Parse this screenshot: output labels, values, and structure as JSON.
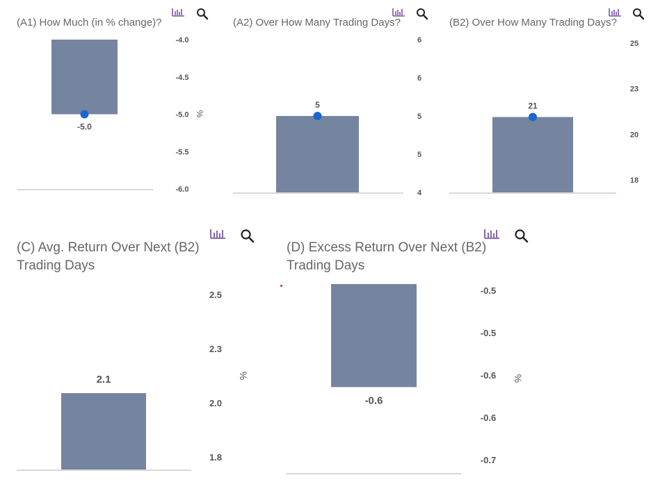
{
  "icons": {
    "chart": "bar-chart-icon",
    "zoom": "search-icon"
  },
  "colors": {
    "bar": "#7585a0",
    "marker": "#1a66cc",
    "baseline": "#d8d8d8",
    "text": "#555555"
  },
  "panels": [
    {
      "title": "(A1) How Much (in % change)?"
    },
    {
      "title": "(A2) Over How Many Trading Days?"
    },
    {
      "title": "(B2) Over How Many Trading Days?"
    },
    {
      "title": "(C) Avg. Return Over Next (B2) Trading Days"
    },
    {
      "title": "(D) Excess Return Over Next (B2) Trading Days"
    }
  ],
  "chart_data": [
    {
      "type": "bar",
      "title": "(A1) How Much (in % change)?",
      "value": -5.0,
      "value_label": "-5.0",
      "marker": true,
      "ylim": [
        -6.0,
        -4.0
      ],
      "yticks": [
        "-4.0",
        "-4.5",
        "-5.0",
        "-5.5",
        "-6.0"
      ],
      "ylabel": "%",
      "bar_from": "top"
    },
    {
      "type": "bar",
      "title": "(A2) Over How Many Trading Days?",
      "value": 5,
      "value_label": "5",
      "marker": true,
      "ylim": [
        4,
        6
      ],
      "yticks": [
        "6",
        "6",
        "5",
        "5",
        "4"
      ],
      "ylabel": "",
      "bar_from": "bottom"
    },
    {
      "type": "bar",
      "title": "(B2) Over How Many Trading Days?",
      "value": 21,
      "value_label": "21",
      "marker": true,
      "ylim": [
        17,
        25
      ],
      "yticks": [
        "25",
        "23",
        "20",
        "18"
      ],
      "ylabel": "",
      "bar_from": "bottom"
    },
    {
      "type": "bar",
      "title": "(C) Avg. Return Over Next (B2) Trading Days",
      "value": 2.1,
      "value_label": "2.1",
      "marker": false,
      "ylim": [
        1.75,
        2.6
      ],
      "yticks": [
        "2.5",
        "2.3",
        "2.0",
        "1.8"
      ],
      "ylabel": "%",
      "bar_from": "bottom"
    },
    {
      "type": "bar",
      "title": "(D) Excess Return Over Next (B2) Trading Days",
      "value": -0.6,
      "value_label": "-0.6",
      "marker": false,
      "ylim": [
        -0.7,
        -0.48
      ],
      "yticks": [
        "-0.5",
        "-0.5",
        "-0.6",
        "-0.6",
        "-0.7"
      ],
      "ylabel": "%",
      "bar_from": "top"
    }
  ]
}
